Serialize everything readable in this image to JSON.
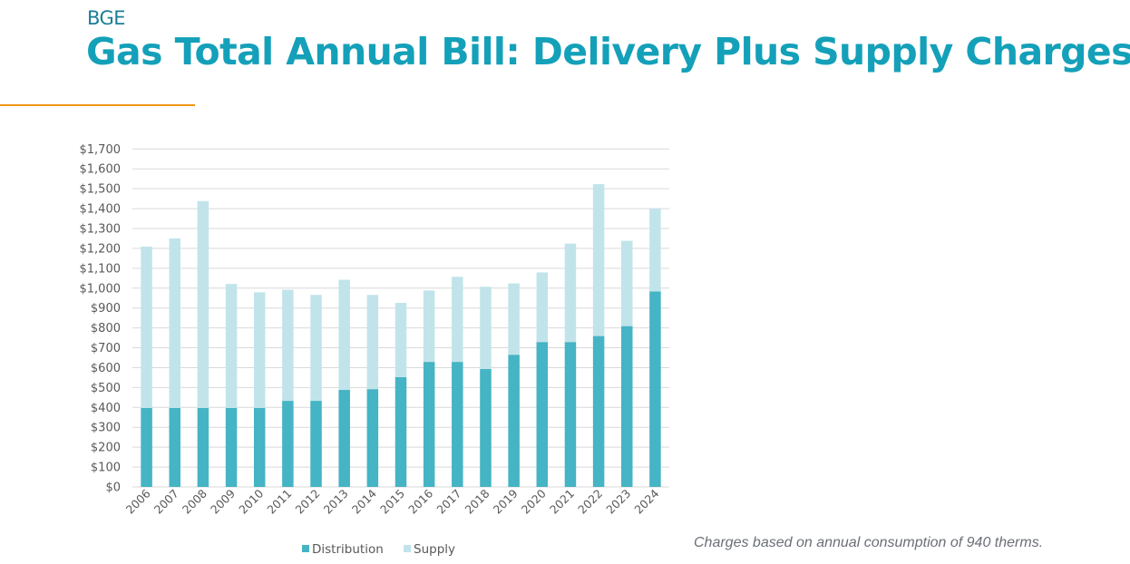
{
  "header": {
    "subtitle": "BGE",
    "title": "Gas Total Annual Bill: Delivery Plus Supply Charges"
  },
  "colors": {
    "title": "#14a0b9",
    "subtitle": "#1a7f96",
    "accent_rule": "#f0960e",
    "distribution": "#45b4c4",
    "supply": "#c1e4ea",
    "gridline": "#d9d9d9"
  },
  "note": "Charges based on annual consumption of 940 therms.",
  "chart_data": {
    "type": "bar",
    "stacked": true,
    "title": "Gas Total Annual Bill: Delivery Plus Supply Charges",
    "xlabel": "",
    "ylabel": "",
    "ylim": [
      0,
      1700
    ],
    "ytick_step": 100,
    "ytick_labels": [
      "$0",
      "$100",
      "$200",
      "$300",
      "$400",
      "$500",
      "$600",
      "$700",
      "$800",
      "$900",
      "$1,000",
      "$1,100",
      "$1,200",
      "$1,300",
      "$1,400",
      "$1,500",
      "$1,600",
      "$1,700"
    ],
    "grid": true,
    "legend_position": "bottom",
    "categories": [
      "2006",
      "2007",
      "2008",
      "2009",
      "2010",
      "2011",
      "2012",
      "2013",
      "2014",
      "2015",
      "2016",
      "2017",
      "2018",
      "2019",
      "2020",
      "2021",
      "2022",
      "2023",
      "2024"
    ],
    "series": [
      {
        "name": "Distribution",
        "color": "#45b4c4",
        "values": [
          397,
          397,
          397,
          397,
          397,
          433,
          433,
          488,
          492,
          552,
          629,
          629,
          593,
          665,
          729,
          729,
          759,
          809,
          983
        ]
      },
      {
        "name": "Supply",
        "color": "#c1e4ea",
        "values": [
          812,
          853,
          1041,
          624,
          582,
          559,
          533,
          554,
          474,
          374,
          359,
          428,
          414,
          359,
          350,
          495,
          764,
          429,
          417
        ]
      }
    ],
    "totals": [
      1209,
      1250,
      1438,
      1021,
      979,
      992,
      966,
      1042,
      966,
      926,
      988,
      1057,
      1007,
      1024,
      1079,
      1224,
      1523,
      1238,
      1400
    ]
  }
}
